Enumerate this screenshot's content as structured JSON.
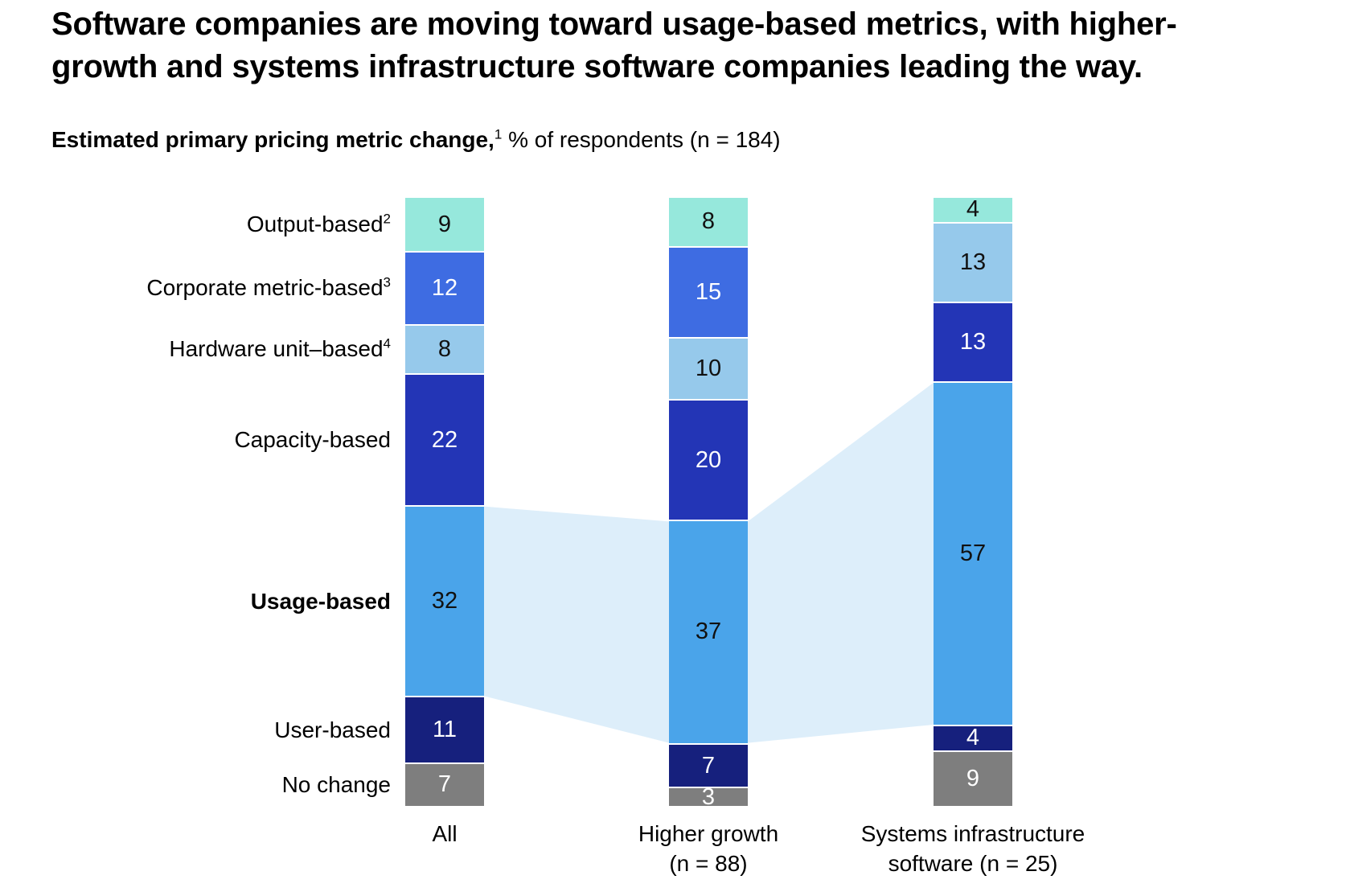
{
  "title_lines": [
    "Software companies are moving toward usage-based metrics, with higher-",
    "growth and systems infrastructure software companies leading the way."
  ],
  "subtitle": {
    "bold": "Estimated primary pricing metric change,",
    "sup": "1",
    "rest": " % of respondents (n = 184)"
  },
  "chart_data": {
    "type": "bar",
    "stacked": true,
    "value_unit": "% of respondents",
    "legend_position": "left-category-labels",
    "grid": false,
    "categories": [
      {
        "label": "Output-based",
        "sup": "2",
        "color": "#96e8dc",
        "text_color": "#111111",
        "bold": false
      },
      {
        "label": "Corporate metric-based",
        "sup": "3",
        "color": "#3e6ce2",
        "text_color": "#ffffff",
        "bold": false
      },
      {
        "label": "Hardware unit–based",
        "sup": "4",
        "color": "#96c9eb",
        "text_color": "#111111",
        "bold": false
      },
      {
        "label": "Capacity-based",
        "sup": "",
        "color": "#2335b6",
        "text_color": "#ffffff",
        "bold": false
      },
      {
        "label": "Usage-based",
        "sup": "",
        "color": "#4aa4ea",
        "text_color": "#111111",
        "bold": true
      },
      {
        "label": "User-based",
        "sup": "",
        "color": "#16207d",
        "text_color": "#ffffff",
        "bold": false
      },
      {
        "label": "No change",
        "sup": "",
        "color": "#7e7e7e",
        "text_color": "#ffffff",
        "bold": false
      }
    ],
    "columns": [
      {
        "label_lines": [
          "All"
        ],
        "values": [
          9,
          12,
          8,
          22,
          32,
          11,
          7
        ]
      },
      {
        "label_lines": [
          "Higher growth",
          "(n = 88)"
        ],
        "values": [
          8,
          15,
          10,
          20,
          37,
          7,
          3
        ]
      },
      {
        "label_lines": [
          "Systems infrastructure",
          "software (n = 25)"
        ],
        "values": [
          4,
          0,
          13,
          13,
          57,
          4,
          9
        ]
      }
    ],
    "highlight_category": "Usage-based",
    "ribbon_color": "#ddeefa"
  }
}
